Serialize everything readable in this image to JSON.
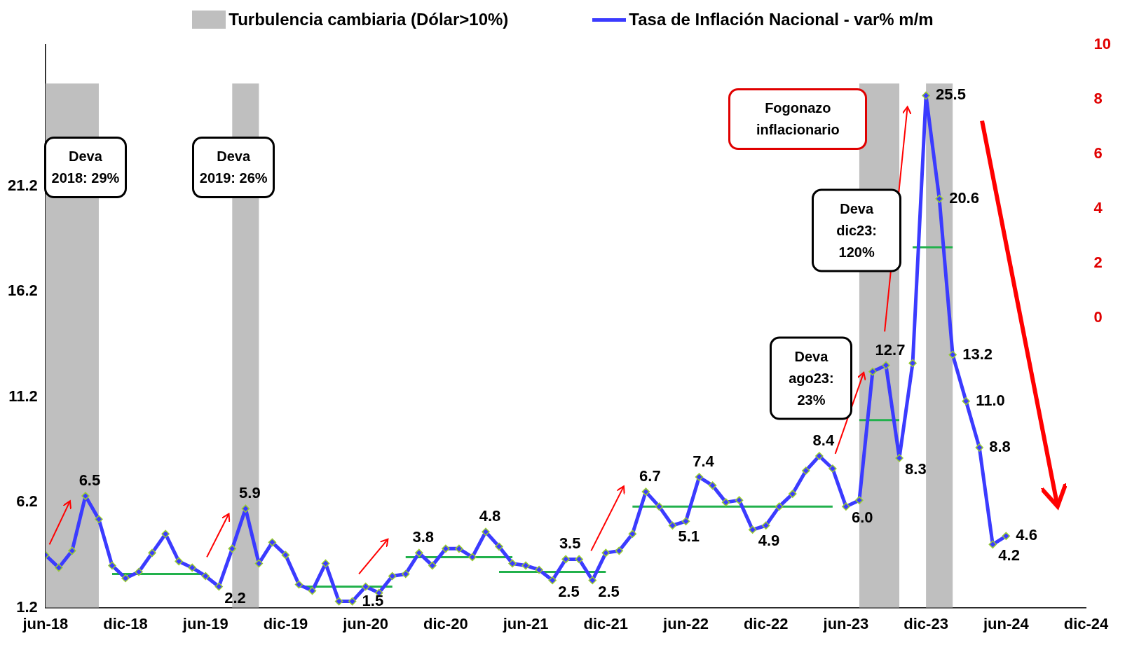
{
  "chart_data": {
    "type": "line",
    "legend": "top",
    "x": [
      "2018-06",
      "2018-07",
      "2018-08",
      "2018-09",
      "2018-10",
      "2018-11",
      "2018-12",
      "2019-01",
      "2019-02",
      "2019-03",
      "2019-04",
      "2019-05",
      "2019-06",
      "2019-07",
      "2019-08",
      "2019-09",
      "2019-10",
      "2019-11",
      "2019-12",
      "2020-01",
      "2020-02",
      "2020-03",
      "2020-04",
      "2020-05",
      "2020-06",
      "2020-07",
      "2020-08",
      "2020-09",
      "2020-10",
      "2020-11",
      "2020-12",
      "2021-01",
      "2021-02",
      "2021-03",
      "2021-04",
      "2021-05",
      "2021-06",
      "2021-07",
      "2021-08",
      "2021-09",
      "2021-10",
      "2021-11",
      "2021-12",
      "2022-01",
      "2022-02",
      "2022-03",
      "2022-04",
      "2022-05",
      "2022-06",
      "2022-07",
      "2022-08",
      "2022-09",
      "2022-10",
      "2022-11",
      "2022-12",
      "2023-01",
      "2023-02",
      "2023-03",
      "2023-04",
      "2023-05",
      "2023-06",
      "2023-07",
      "2023-08",
      "2023-09",
      "2023-10",
      "2023-11",
      "2023-12",
      "2024-01",
      "2024-02",
      "2024-03",
      "2024-04",
      "2024-05",
      "2024-06"
    ],
    "xlim": [
      "2018-06",
      "2024-12"
    ],
    "xticks": [
      {
        "value": "2018-06",
        "label": "jun-18"
      },
      {
        "value": "2018-12",
        "label": "dic-18"
      },
      {
        "value": "2019-06",
        "label": "jun-19"
      },
      {
        "value": "2019-12",
        "label": "dic-19"
      },
      {
        "value": "2020-06",
        "label": "jun-20"
      },
      {
        "value": "2020-12",
        "label": "dic-20"
      },
      {
        "value": "2021-06",
        "label": "jun-21"
      },
      {
        "value": "2021-12",
        "label": "dic-21"
      },
      {
        "value": "2022-06",
        "label": "jun-22"
      },
      {
        "value": "2022-12",
        "label": "dic-22"
      },
      {
        "value": "2023-06",
        "label": "jun-23"
      },
      {
        "value": "2023-12",
        "label": "dic-23"
      },
      {
        "value": "2024-06",
        "label": "jun-24"
      },
      {
        "value": "2024-12",
        "label": "dic-24"
      }
    ],
    "ylim": [
      1.2,
      27.9
    ],
    "yticks": [
      1.2,
      6.2,
      11.2,
      16.2,
      21.2
    ],
    "y2lim": [
      -10.6,
      10
    ],
    "y2ticks": [
      0,
      2,
      4,
      6,
      8,
      10
    ],
    "series": [
      {
        "name": "Tasa de Inflación Nacional - var% m/m",
        "color": "#3b3bff",
        "marker": "diamond",
        "values": [
          3.7,
          3.1,
          3.9,
          6.5,
          5.4,
          3.2,
          2.6,
          2.9,
          3.8,
          4.7,
          3.4,
          3.1,
          2.7,
          2.2,
          4.0,
          5.9,
          3.3,
          4.3,
          3.7,
          2.3,
          2.0,
          3.3,
          1.5,
          1.5,
          2.2,
          1.9,
          2.7,
          2.8,
          3.8,
          3.2,
          4.0,
          4.0,
          3.6,
          4.8,
          4.1,
          3.3,
          3.2,
          3.0,
          2.5,
          3.5,
          3.5,
          2.5,
          3.8,
          3.9,
          4.7,
          6.7,
          6.0,
          5.1,
          5.3,
          7.4,
          7.0,
          6.2,
          6.3,
          4.9,
          5.1,
          6.0,
          6.6,
          7.7,
          8.4,
          7.8,
          6.0,
          6.3,
          12.4,
          12.7,
          8.3,
          12.8,
          25.5,
          20.6,
          13.2,
          11.0,
          8.8,
          4.2,
          4.6
        ],
        "value_labels": [
          null,
          null,
          null,
          "6.5",
          null,
          null,
          null,
          null,
          null,
          null,
          null,
          null,
          null,
          "2.2",
          null,
          "5.9",
          null,
          null,
          null,
          null,
          null,
          null,
          null,
          "1.5",
          null,
          null,
          null,
          null,
          "3.8",
          null,
          null,
          null,
          null,
          "4.8",
          null,
          null,
          null,
          null,
          "2.5",
          "3.5",
          null,
          "2.5",
          null,
          null,
          null,
          "6.7",
          null,
          "5.1",
          null,
          "7.4",
          null,
          null,
          null,
          "4.9",
          null,
          null,
          null,
          null,
          "8.4",
          null,
          "6.0",
          null,
          null,
          "12.7",
          "8.3",
          null,
          "25.5",
          "20.6",
          "13.2",
          "11.0",
          "8.8",
          "4.2",
          "4.6"
        ]
      },
      {
        "type": "line",
        "color": "#22b14c",
        "marker": "none",
        "x": [
          "2018-11",
          "2019-06"
        ],
        "values": [
          2.8,
          2.8
        ]
      },
      {
        "type": "line",
        "color": "#22b14c",
        "marker": "none",
        "x": [
          "2020-01",
          "2020-08"
        ],
        "values": [
          2.2,
          2.2
        ]
      },
      {
        "type": "line",
        "color": "#22b14c",
        "marker": "none",
        "x": [
          "2020-09",
          "2021-05"
        ],
        "values": [
          3.6,
          3.6
        ]
      },
      {
        "type": "line",
        "color": "#22b14c",
        "marker": "none",
        "x": [
          "2021-04",
          "2021-12"
        ],
        "values": [
          2.9,
          2.9
        ]
      },
      {
        "type": "line",
        "color": "#22b14c",
        "marker": "none",
        "x": [
          "2022-02",
          "2023-05"
        ],
        "values": [
          6.0,
          6.0
        ]
      },
      {
        "type": "line",
        "color": "#22b14c",
        "marker": "none",
        "x": [
          "2023-07",
          "2023-10"
        ],
        "values": [
          10.1,
          10.1
        ]
      },
      {
        "type": "line",
        "color": "#22b14c",
        "marker": "none",
        "x": [
          "2023-11",
          "2024-02"
        ],
        "values": [
          18.3,
          18.3
        ]
      }
    ],
    "bands": [
      {
        "axis": "x",
        "from": "2018-06",
        "to": "2018-10",
        "label": "Turbulencia cambiaria (Dólar>10%)",
        "color": "#bfbfbf"
      },
      {
        "axis": "x",
        "from": "2019-08",
        "to": "2019-10",
        "color": "#bfbfbf"
      },
      {
        "axis": "x",
        "from": "2023-07",
        "to": "2023-10",
        "color": "#bfbfbf"
      },
      {
        "axis": "x",
        "from": "2023-12",
        "to": "2024-02",
        "color": "#bfbfbf"
      }
    ],
    "annotations": [
      "Deva 2018: 29%",
      "Deva 2019: 26%",
      "Fogonazo inflacionario",
      "Deva dic23: 120%",
      "Deva ago23: 23%"
    ]
  }
}
